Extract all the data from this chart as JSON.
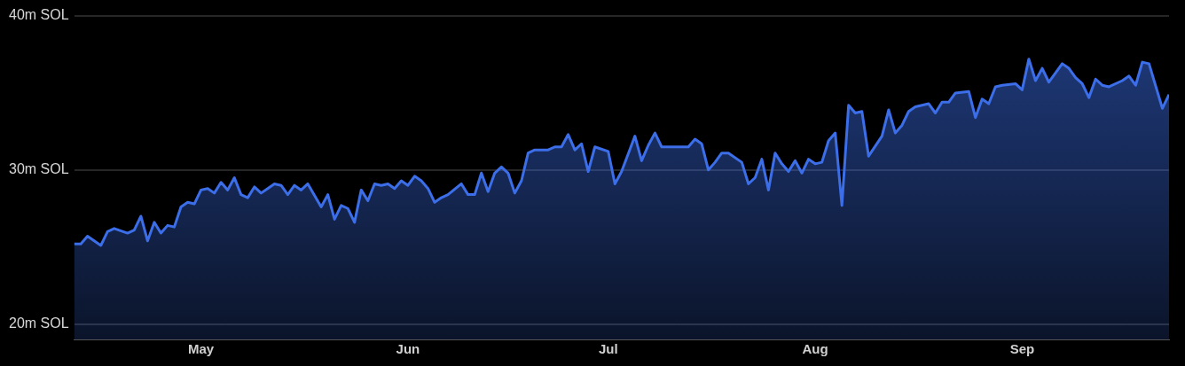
{
  "chart_data": {
    "type": "area",
    "x": [
      "--04-12",
      "--04-13",
      "--04-14",
      "--04-15",
      "--04-16",
      "--04-17",
      "--04-18",
      "--04-20",
      "--04-21",
      "--04-22",
      "--04-23",
      "--04-24",
      "--04-25",
      "--04-26",
      "--04-27",
      "--04-28",
      "--04-29",
      "--04-30",
      "--05-01",
      "--05-02",
      "--05-03",
      "--05-04",
      "--05-05",
      "--05-06",
      "--05-07",
      "--05-08",
      "--05-09",
      "--05-10",
      "--05-11",
      "--05-12",
      "--05-13",
      "--05-14",
      "--05-15",
      "--05-16",
      "--05-17",
      "--05-19",
      "--05-20",
      "--05-21",
      "--05-22",
      "--05-23",
      "--05-24",
      "--05-25",
      "--05-26",
      "--05-27",
      "--05-28",
      "--05-29",
      "--05-30",
      "--05-31",
      "--06-01",
      "--06-02",
      "--06-03",
      "--06-04",
      "--06-05",
      "--06-06",
      "--06-07",
      "--06-09",
      "--06-10",
      "--06-11",
      "--06-12",
      "--06-13",
      "--06-14",
      "--06-15",
      "--06-16",
      "--06-17",
      "--06-18",
      "--06-19",
      "--06-20",
      "--06-22",
      "--06-23",
      "--06-24",
      "--06-25",
      "--06-26",
      "--06-27",
      "--06-28",
      "--06-29",
      "--07-01",
      "--07-02",
      "--07-03",
      "--07-05",
      "--07-06",
      "--07-07",
      "--07-08",
      "--07-09",
      "--07-10",
      "--07-13",
      "--07-14",
      "--07-15",
      "--07-16",
      "--07-17",
      "--07-18",
      "--07-19",
      "--07-21",
      "--07-22",
      "--07-23",
      "--07-24",
      "--07-25",
      "--07-26",
      "--07-27",
      "--07-28",
      "--07-29",
      "--07-30",
      "--07-31",
      "--08-01",
      "--08-02",
      "--08-03",
      "--08-04",
      "--08-05",
      "--08-06",
      "--08-07",
      "--08-08",
      "--08-09",
      "--08-11",
      "--08-12",
      "--08-13",
      "--08-14",
      "--08-15",
      "--08-16",
      "--08-18",
      "--08-19",
      "--08-20",
      "--08-21",
      "--08-22",
      "--08-24",
      "--08-25",
      "--08-26",
      "--08-27",
      "--08-28",
      "--08-29",
      "--08-31",
      "--09-01",
      "--09-02",
      "--09-03",
      "--09-04",
      "--09-05",
      "--09-07",
      "--09-08",
      "--09-09",
      "--09-10",
      "--09-11",
      "--09-12",
      "--09-13",
      "--09-14",
      "--09-16",
      "--09-17",
      "--09-18",
      "--09-19",
      "--09-20",
      "--09-22",
      "--09-23"
    ],
    "series": [
      {
        "color": "#3b6ee8",
        "values": [
          25.2,
          25.2,
          25.7,
          25.4,
          25.1,
          26.0,
          26.2,
          25.9,
          26.1,
          27.0,
          25.4,
          26.6,
          25.9,
          26.4,
          26.3,
          27.6,
          27.9,
          27.8,
          28.7,
          28.8,
          28.5,
          29.2,
          28.7,
          29.5,
          28.4,
          28.2,
          28.9,
          28.5,
          28.8,
          29.1,
          29.0,
          28.4,
          29.0,
          28.7,
          29.1,
          27.6,
          28.4,
          26.8,
          27.7,
          27.5,
          26.6,
          28.7,
          28.0,
          29.1,
          29.0,
          29.1,
          28.8,
          29.3,
          29.0,
          29.6,
          29.3,
          28.8,
          27.9,
          28.2,
          28.4,
          29.1,
          28.4,
          28.4,
          29.8,
          28.6,
          29.8,
          30.2,
          29.8,
          28.5,
          29.3,
          31.1,
          31.3,
          31.3,
          31.5,
          31.5,
          32.3,
          31.3,
          31.7,
          29.9,
          31.5,
          31.2,
          29.1,
          29.9,
          32.2,
          30.6,
          31.6,
          32.4,
          31.5,
          31.5,
          31.5,
          32.0,
          31.7,
          30.0,
          30.5,
          31.1,
          31.1,
          30.5,
          29.1,
          29.5,
          30.7,
          28.7,
          31.1,
          30.4,
          29.9,
          30.6,
          29.8,
          30.7,
          30.4,
          30.5,
          31.9,
          32.4,
          27.7,
          34.2,
          33.7,
          33.8,
          30.9,
          32.2,
          33.9,
          32.4,
          32.9,
          33.8,
          34.1,
          34.3,
          33.7,
          34.4,
          34.4,
          35.0,
          35.1,
          33.4,
          34.6,
          34.3,
          35.4,
          35.5,
          35.6,
          35.2,
          37.2,
          35.8,
          36.6,
          35.7,
          36.9,
          36.6,
          36.0,
          35.6,
          34.7,
          35.9,
          35.5,
          35.4,
          35.8,
          36.1,
          35.5,
          37.0,
          36.9,
          34.0,
          34.9
        ]
      }
    ],
    "xlim": [
      "--04-12",
      "--09-23"
    ],
    "xticks": [
      {
        "value": "--05-01",
        "label": "May"
      },
      {
        "value": "--06-01",
        "label": "Jun"
      },
      {
        "value": "--07-01",
        "label": "Jul"
      },
      {
        "value": "--08-01",
        "label": "Aug"
      },
      {
        "value": "--09-01",
        "label": "Sep"
      }
    ],
    "ylim": [
      19,
      40
    ],
    "yticks": [
      {
        "value": 20,
        "label": "20m SOL"
      },
      {
        "value": 30,
        "label": "30m SOL"
      },
      {
        "value": 40,
        "label": "40m SOL"
      }
    ],
    "grid": "y",
    "marker": "none",
    "line_style": "solid"
  }
}
